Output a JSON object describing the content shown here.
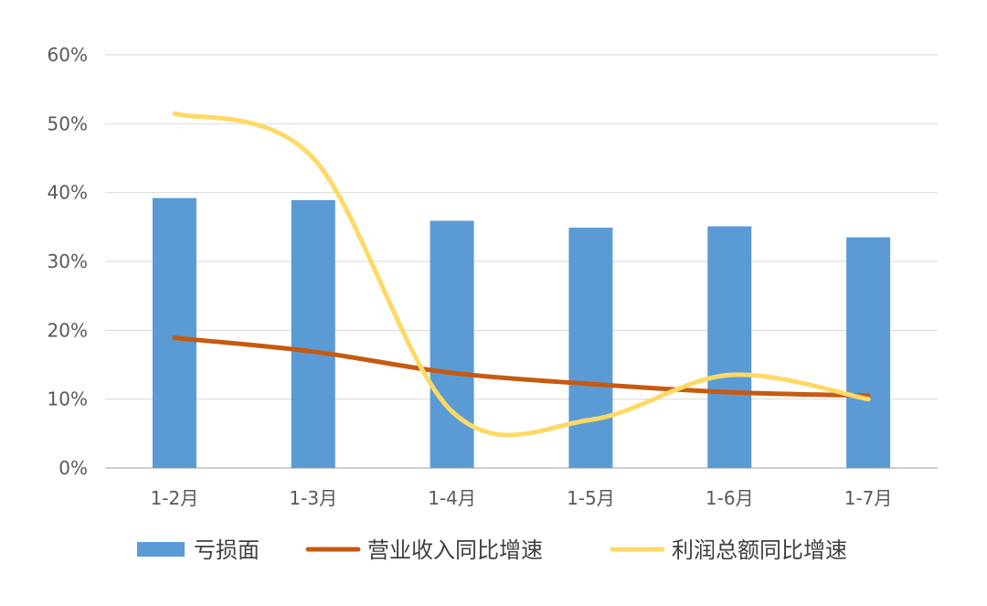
{
  "chart_data": {
    "type": "bar",
    "categories": [
      "1-2月",
      "1-3月",
      "1-4月",
      "1-5月",
      "1-6月",
      "1-7月"
    ],
    "y_ticks": [
      "0%",
      "10%",
      "20%",
      "30%",
      "40%",
      "50%",
      "60%"
    ],
    "ylim": [
      0,
      60
    ],
    "grid": true,
    "legend_placement": "bottom",
    "series": [
      {
        "name": "亏损面",
        "type": "bar",
        "color": "#5B9BD5",
        "values": [
          39.2,
          38.9,
          35.9,
          34.9,
          35.1,
          33.5
        ]
      },
      {
        "name": "营业收入同比增速",
        "type": "line",
        "color": "#C55A11",
        "values": [
          18.9,
          16.9,
          13.8,
          12.2,
          11.0,
          10.5
        ]
      },
      {
        "name": "利润总额同比增速",
        "type": "line",
        "color": "#FFD966",
        "values": [
          51.5,
          45.0,
          8.2,
          7.0,
          13.5,
          10.0
        ]
      }
    ]
  }
}
